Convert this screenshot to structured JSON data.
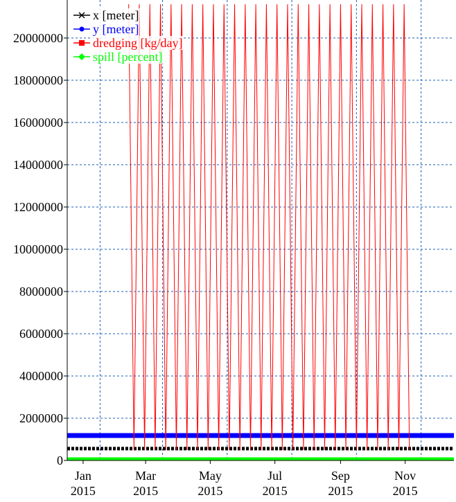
{
  "chart_data": {
    "type": "line",
    "series": [
      {
        "name": "x [meter]",
        "color": "#000000",
        "marker": "x",
        "x": [
          "2015-01-01",
          "2016-01-01"
        ],
        "values": [
          560000,
          560000
        ]
      },
      {
        "name": "y [meter]",
        "color": "#0000ff",
        "marker": "circle",
        "x": [
          "2015-01-01",
          "2016-01-01"
        ],
        "values": [
          1180000,
          1180000
        ]
      },
      {
        "name": "dredging [kg/day]",
        "color": "#ff0000",
        "marker": "square",
        "x": [
          "2015-02-28",
          "2015-03-05",
          "2015-03-10",
          "2015-03-15",
          "2015-03-20",
          "2015-03-25",
          "2015-03-30",
          "2015-04-04",
          "2015-04-09",
          "2015-04-14",
          "2015-04-19",
          "2015-04-24",
          "2015-04-29",
          "2015-05-04",
          "2015-05-09",
          "2015-05-14",
          "2015-05-19",
          "2015-05-24",
          "2015-05-29",
          "2015-06-03",
          "2015-06-08",
          "2015-06-13",
          "2015-06-18",
          "2015-06-23",
          "2015-06-28",
          "2015-07-03",
          "2015-07-08",
          "2015-07-13",
          "2015-07-18",
          "2015-07-23",
          "2015-07-28",
          "2015-08-02",
          "2015-08-07",
          "2015-08-12",
          "2015-08-17",
          "2015-08-22",
          "2015-08-27",
          "2015-09-01",
          "2015-09-06",
          "2015-09-11",
          "2015-09-16",
          "2015-09-21",
          "2015-09-26",
          "2015-10-01",
          "2015-10-06",
          "2015-10-11",
          "2015-10-16",
          "2015-10-21",
          "2015-10-26",
          "2015-10-31",
          "2015-11-05",
          "2015-11-10",
          "2015-11-15",
          "2015-11-20"
        ],
        "values": [
          21600000,
          500000,
          21600000,
          500000,
          21600000,
          500000,
          21600000,
          500000,
          21600000,
          500000,
          21600000,
          500000,
          21600000,
          500000,
          21600000,
          500000,
          21600000,
          500000,
          21600000,
          500000,
          21600000,
          500000,
          21600000,
          500000,
          21600000,
          500000,
          21600000,
          500000,
          21600000,
          500000,
          21600000,
          500000,
          21600000,
          500000,
          21600000,
          500000,
          21600000,
          500000,
          21600000,
          500000,
          21600000,
          500000,
          21600000,
          500000,
          21600000,
          500000,
          21600000,
          500000,
          21600000,
          500000,
          21600000,
          500000,
          21600000,
          500000
        ]
      },
      {
        "name": "spill [percent]",
        "color": "#00ff00",
        "marker": "diamond",
        "x": [
          "2015-01-01",
          "2016-01-01"
        ],
        "values": [
          80000,
          80000
        ]
      }
    ],
    "xlim": [
      "2015-01-01",
      "2016-01-01"
    ],
    "xticks": [
      {
        "value": "2015-01-16",
        "label": "Jan\n2015"
      },
      {
        "value": "2015-03-16",
        "label": "Mar\n2015"
      },
      {
        "value": "2015-05-16",
        "label": "May\n2015"
      },
      {
        "value": "2015-07-16",
        "label": "Jul\n2015"
      },
      {
        "value": "2015-09-16",
        "label": "Sep\n2015"
      },
      {
        "value": "2015-11-16",
        "label": "Nov\n2015"
      }
    ],
    "xgrid": [
      "2015-02-01",
      "2015-04-01",
      "2015-06-01",
      "2015-08-01",
      "2015-10-01",
      "2015-12-01"
    ],
    "ylim": [
      0,
      21800000
    ],
    "yticks": [
      0,
      2000000,
      4000000,
      6000000,
      8000000,
      10000000,
      12000000,
      14000000,
      16000000,
      18000000,
      20000000
    ],
    "grid": true,
    "legend": "top-left"
  }
}
